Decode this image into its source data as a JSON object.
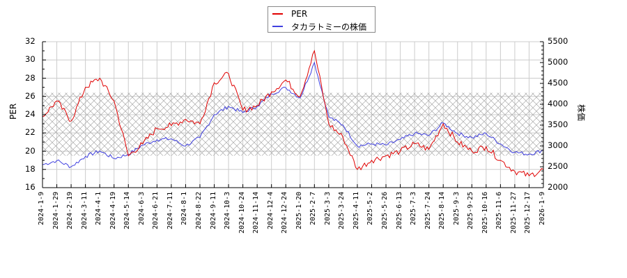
{
  "chart_data": {
    "type": "line",
    "title": "",
    "legend": {
      "position": "top-center",
      "entries": [
        {
          "label": "PER",
          "color": "#e00000"
        },
        {
          "label": "タカラトミーの株価",
          "color": "#4040e0"
        }
      ]
    },
    "y_left": {
      "label": "PER",
      "range": [
        16,
        32
      ],
      "ticks": [
        16,
        18,
        20,
        22,
        24,
        26,
        28,
        30,
        32
      ]
    },
    "y_right": {
      "label": "株価",
      "range": [
        2000,
        5500
      ],
      "ticks": [
        2000,
        2500,
        3000,
        3500,
        4000,
        4500,
        5000,
        5500
      ]
    },
    "xlabel": "",
    "grid": true,
    "shaded_band": {
      "axis": "left",
      "from": 19.5,
      "to": 26.4,
      "pattern": "crosshatch",
      "color": "#bbbbbb"
    },
    "categories": [
      "2024-1-9",
      "2024-1-29",
      "2024-2-19",
      "2024-3-11",
      "2024-4-1",
      "2024-4-19",
      "2024-5-14",
      "2024-6-3",
      "2024-6-21",
      "2024-7-11",
      "2024-8-1",
      "2024-8-22",
      "2024-9-11",
      "2024-10-3",
      "2024-10-24",
      "2024-11-14",
      "2024-12-4",
      "2024-12-24",
      "2025-1-20",
      "2025-2-7",
      "2025-3-3",
      "2025-3-24",
      "2025-4-11",
      "2025-5-2",
      "2025-5-26",
      "2025-6-13",
      "2025-7-3",
      "2025-7-24",
      "2025-8-14",
      "2025-9-3",
      "2025-9-25",
      "2025-10-16",
      "2025-11-6",
      "2025-11-27",
      "2025-12-17",
      "2026-1-9"
    ],
    "series": [
      {
        "name": "PER",
        "axis": "left",
        "color": "#e00000",
        "values": [
          23.8,
          25.5,
          23.3,
          27.0,
          28.0,
          25.5,
          19.5,
          20.8,
          22.5,
          22.8,
          23.5,
          23.0,
          27.5,
          28.5,
          24.5,
          25.0,
          26.5,
          27.8,
          26.0,
          31.0,
          23.0,
          21.5,
          18.0,
          19.0,
          19.5,
          20.0,
          20.8,
          20.2,
          23.0,
          21.0,
          20.0,
          20.5,
          19.0,
          17.8,
          17.3,
          18.0
        ]
      },
      {
        "name": "タカラトミーの株価",
        "axis": "right",
        "color": "#4040e0",
        "values": [
          2550,
          2650,
          2500,
          2750,
          2880,
          2700,
          2800,
          3020,
          3150,
          3170,
          3000,
          3200,
          3750,
          3950,
          3800,
          3950,
          4250,
          4400,
          4150,
          5000,
          3700,
          3500,
          3000,
          3050,
          3020,
          3150,
          3300,
          3250,
          3550,
          3300,
          3200,
          3300,
          3050,
          2850,
          2800,
          2900
        ]
      }
    ]
  }
}
